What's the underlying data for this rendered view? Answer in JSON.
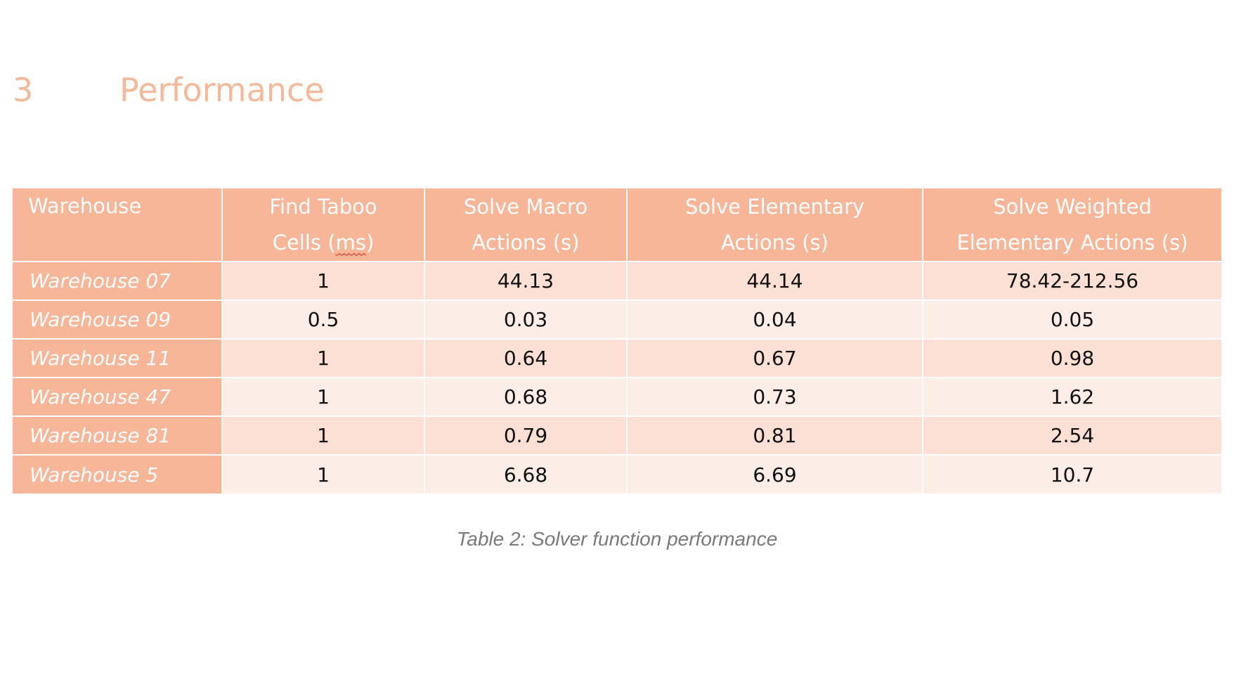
{
  "heading": {
    "number": "3",
    "title": "Performance"
  },
  "table": {
    "headers": [
      {
        "line1": "Warehouse",
        "line2": ""
      },
      {
        "line1": "Find Taboo",
        "line2_pre": "Cells (",
        "line2_mark": "ms",
        "line2_post": ")"
      },
      {
        "line1": "Solve Macro",
        "line2": "Actions (s)"
      },
      {
        "line1": "Solve Elementary",
        "line2": "Actions (s)"
      },
      {
        "line1": "Solve Weighted",
        "line2": "Elementary Actions (s)"
      }
    ],
    "rows": [
      [
        "Warehouse 07",
        "1",
        "44.13",
        "44.14",
        "78.42-212.56"
      ],
      [
        "Warehouse 09",
        "0.5",
        "0.03",
        "0.04",
        "0.05"
      ],
      [
        "Warehouse 11",
        "1",
        "0.64",
        "0.67",
        "0.98"
      ],
      [
        "Warehouse 47",
        "1",
        "0.68",
        "0.73",
        "1.62"
      ],
      [
        "Warehouse 81",
        "1",
        "0.79",
        "0.81",
        "2.54"
      ],
      [
        "Warehouse 5",
        "1",
        "6.68",
        "6.69",
        "10.7"
      ]
    ]
  },
  "caption": "Table 2: Solver function performance",
  "colors": {
    "accent": "#f7b698",
    "heading": "#f4b99a",
    "row_odd": "#fce0d5",
    "row_even": "#fdede7",
    "spellcheck_underline": "#d21f1f"
  }
}
